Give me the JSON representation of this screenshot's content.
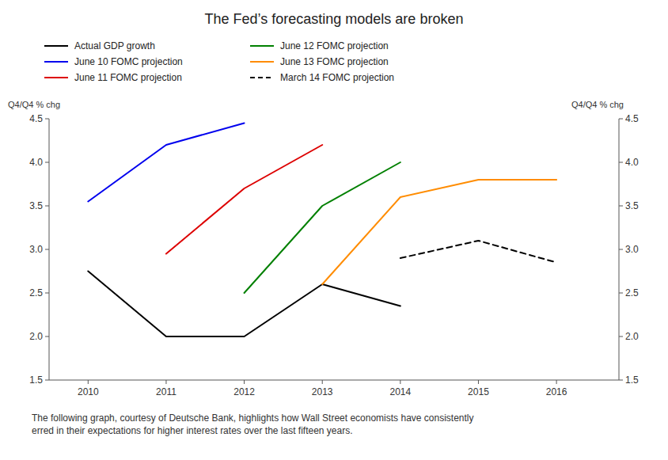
{
  "chart_data": {
    "type": "line",
    "title": "The Fed’s forecasting models are broken",
    "y_label": "Q4/Q4 % chg",
    "y2_label": "Q4/Q4 % chg",
    "xlim": [
      2009.5,
      2016.8
    ],
    "xticks": [
      2010,
      2011,
      2012,
      2013,
      2014,
      2015,
      2016
    ],
    "ylim": [
      1.5,
      4.5
    ],
    "yticks": [
      1.5,
      {
        "value": 2.0,
        "label": "2.0"
      },
      2.5,
      {
        "value": 3.0,
        "label": "3.0"
      },
      3.5,
      {
        "value": 4.0,
        "label": "4.0"
      },
      4.5
    ],
    "y2lim": [
      1.5,
      4.5
    ],
    "y2ticks": [
      1.5,
      {
        "value": 2.0,
        "label": "2.0"
      },
      2.5,
      {
        "value": 3.0,
        "label": "3.0"
      },
      3.5,
      {
        "value": 4.0,
        "label": "4.0"
      },
      4.5
    ],
    "grid": false,
    "legend": "top",
    "series": [
      {
        "name": "Actual GDP growth",
        "color": "#000000",
        "line_style": "solid",
        "x": [
          2010,
          2011,
          2012,
          2013,
          2014
        ],
        "values": [
          2.75,
          2.0,
          2.0,
          2.6,
          2.35
        ]
      },
      {
        "name": "June 10 FOMC projection",
        "color": "#0000ee",
        "line_style": "solid",
        "x": [
          2010,
          2011,
          2012
        ],
        "values": [
          3.55,
          4.2,
          4.45
        ]
      },
      {
        "name": "June 11 FOMC projection",
        "color": "#dd0000",
        "line_style": "solid",
        "x": [
          2011,
          2012,
          2013
        ],
        "values": [
          2.95,
          3.7,
          4.2
        ]
      },
      {
        "name": "June 12 FOMC projection",
        "color": "#008000",
        "line_style": "solid",
        "x": [
          2012,
          2013,
          2014
        ],
        "values": [
          2.5,
          3.5,
          4.0
        ]
      },
      {
        "name": "June 13 FOMC projection",
        "color": "#ff8c00",
        "line_style": "solid",
        "x": [
          2013,
          2014,
          2015,
          2016
        ],
        "values": [
          2.6,
          3.6,
          3.8,
          3.8
        ]
      },
      {
        "name": "March 14 FOMC projection",
        "color": "#000000",
        "line_style": "dashed",
        "x": [
          2014,
          2015,
          2016
        ],
        "values": [
          2.9,
          3.1,
          2.85
        ]
      }
    ],
    "annotations": [
      "The following graph, courtesy of Deutsche Bank, highlights how Wall Street economists have consistently\nerred in their expectations for higher interest rates over the last fifteen years."
    ]
  }
}
